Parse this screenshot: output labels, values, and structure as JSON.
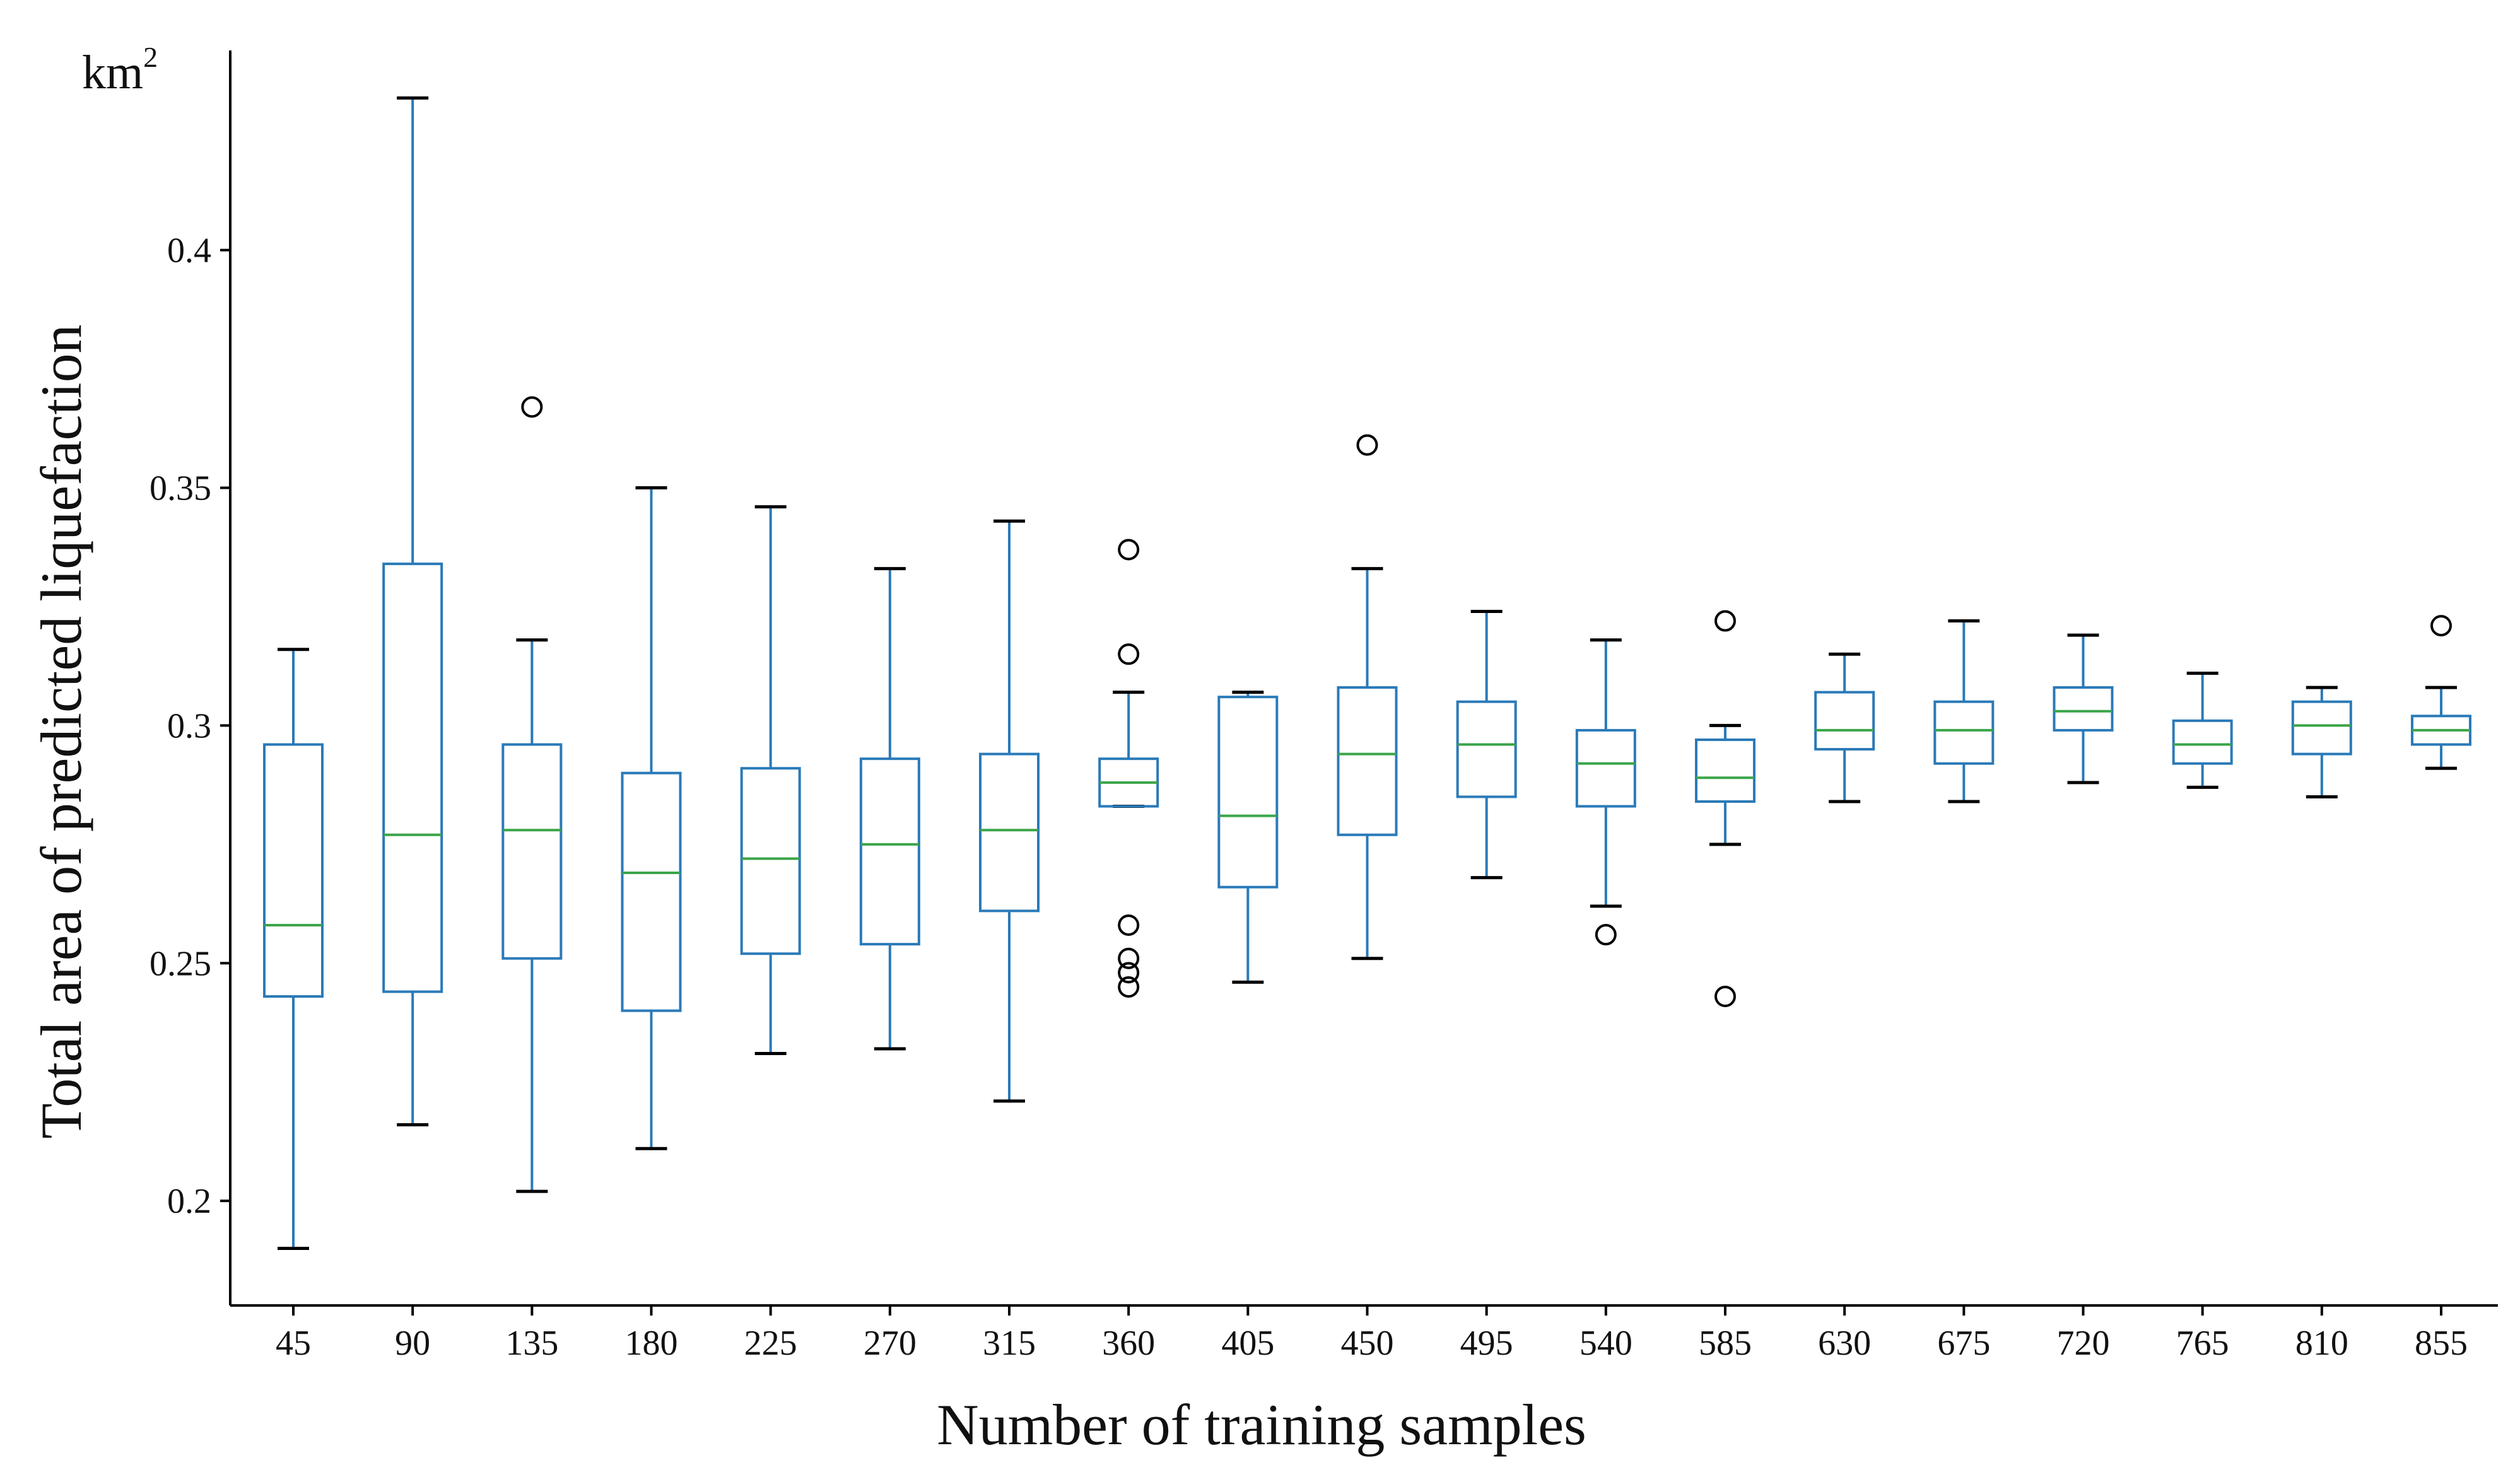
{
  "chart_data": {
    "type": "box",
    "title": "",
    "xlabel": "Number of training samples",
    "ylabel": "Total area of predicted liquefaction",
    "unit": {
      "base": "km",
      "sup": "2"
    },
    "ylim": [
      0.178,
      0.442
    ],
    "yticks": [
      0.2,
      0.25,
      0.3,
      0.35,
      0.4
    ],
    "ytick_labels": [
      "0.2",
      "0.25",
      "0.3",
      "0.35",
      "0.4"
    ],
    "grid": false,
    "colors": {
      "box": "#2a7ab8",
      "median": "#3aa54a",
      "whisker_cap": "#000000",
      "outlier": "#000000",
      "axis": "#000000"
    },
    "categories": [
      "45",
      "90",
      "135",
      "180",
      "225",
      "270",
      "315",
      "360",
      "405",
      "450",
      "495",
      "540",
      "585",
      "630",
      "675",
      "720",
      "765",
      "810",
      "855"
    ],
    "boxes": [
      {
        "category": "45",
        "whislo": 0.19,
        "q1": 0.243,
        "med": 0.258,
        "q3": 0.296,
        "whishi": 0.316,
        "fliers": []
      },
      {
        "category": "90",
        "whislo": 0.216,
        "q1": 0.244,
        "med": 0.277,
        "q3": 0.334,
        "whishi": 0.432,
        "fliers": []
      },
      {
        "category": "135",
        "whislo": 0.202,
        "q1": 0.251,
        "med": 0.278,
        "q3": 0.296,
        "whishi": 0.318,
        "fliers": [
          0.367
        ]
      },
      {
        "category": "180",
        "whislo": 0.211,
        "q1": 0.24,
        "med": 0.269,
        "q3": 0.29,
        "whishi": 0.35,
        "fliers": []
      },
      {
        "category": "225",
        "whislo": 0.231,
        "q1": 0.252,
        "med": 0.272,
        "q3": 0.291,
        "whishi": 0.346,
        "fliers": []
      },
      {
        "category": "270",
        "whislo": 0.232,
        "q1": 0.254,
        "med": 0.275,
        "q3": 0.293,
        "whishi": 0.333,
        "fliers": []
      },
      {
        "category": "315",
        "whislo": 0.221,
        "q1": 0.261,
        "med": 0.278,
        "q3": 0.294,
        "whishi": 0.343,
        "fliers": []
      },
      {
        "category": "360",
        "whislo": 0.283,
        "q1": 0.283,
        "med": 0.288,
        "q3": 0.293,
        "whishi": 0.307,
        "fliers": [
          0.245,
          0.248,
          0.251,
          0.258,
          0.315,
          0.337
        ]
      },
      {
        "category": "405",
        "whislo": 0.246,
        "q1": 0.266,
        "med": 0.281,
        "q3": 0.306,
        "whishi": 0.307,
        "fliers": []
      },
      {
        "category": "450",
        "whislo": 0.251,
        "q1": 0.277,
        "med": 0.294,
        "q3": 0.308,
        "whishi": 0.333,
        "fliers": [
          0.359
        ]
      },
      {
        "category": "495",
        "whislo": 0.268,
        "q1": 0.285,
        "med": 0.296,
        "q3": 0.305,
        "whishi": 0.324,
        "fliers": []
      },
      {
        "category": "540",
        "whislo": 0.262,
        "q1": 0.283,
        "med": 0.292,
        "q3": 0.299,
        "whishi": 0.318,
        "fliers": [
          0.256
        ]
      },
      {
        "category": "585",
        "whislo": 0.275,
        "q1": 0.284,
        "med": 0.289,
        "q3": 0.297,
        "whishi": 0.3,
        "fliers": [
          0.243,
          0.322
        ]
      },
      {
        "category": "630",
        "whislo": 0.284,
        "q1": 0.295,
        "med": 0.299,
        "q3": 0.307,
        "whishi": 0.315,
        "fliers": []
      },
      {
        "category": "675",
        "whislo": 0.284,
        "q1": 0.292,
        "med": 0.299,
        "q3": 0.305,
        "whishi": 0.322,
        "fliers": []
      },
      {
        "category": "720",
        "whislo": 0.288,
        "q1": 0.299,
        "med": 0.303,
        "q3": 0.308,
        "whishi": 0.319,
        "fliers": []
      },
      {
        "category": "765",
        "whislo": 0.287,
        "q1": 0.292,
        "med": 0.296,
        "q3": 0.301,
        "whishi": 0.311,
        "fliers": []
      },
      {
        "category": "810",
        "whislo": 0.285,
        "q1": 0.294,
        "med": 0.3,
        "q3": 0.305,
        "whishi": 0.308,
        "fliers": []
      },
      {
        "category": "855",
        "whislo": 0.291,
        "q1": 0.296,
        "med": 0.299,
        "q3": 0.302,
        "whishi": 0.308,
        "fliers": [
          0.321
        ]
      }
    ]
  }
}
